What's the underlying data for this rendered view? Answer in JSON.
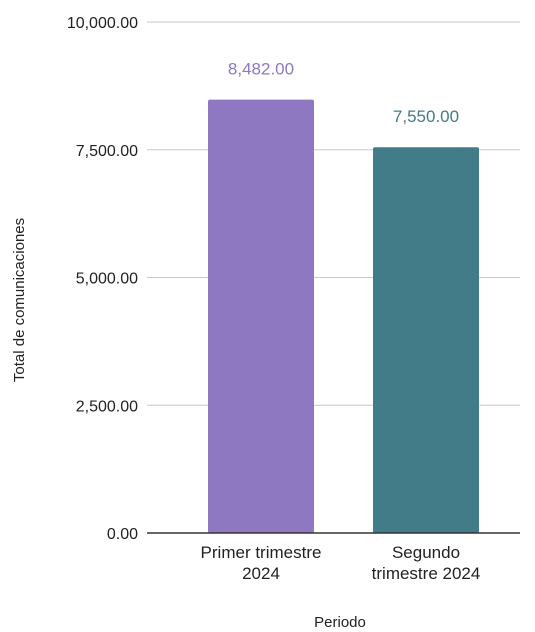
{
  "chart_data": {
    "type": "bar",
    "title": "",
    "xlabel": "Periodo",
    "ylabel": "Total de comunicaciones",
    "ylim": [
      0,
      10000
    ],
    "yticks": [
      "0.00",
      "2,500.00",
      "5,000.00",
      "7,500.00",
      "10,000.00"
    ],
    "ytick_values": [
      0,
      2500,
      5000,
      7500,
      10000
    ],
    "grid": true,
    "categories": [
      [
        "Primer trimestre",
        "2024"
      ],
      [
        "Segundo",
        "trimestre 2024"
      ]
    ],
    "values": [
      8482,
      7550
    ],
    "data_labels": [
      "8,482.00",
      "7,550.00"
    ],
    "colors": [
      "#8E78C2",
      "#427C89"
    ]
  }
}
